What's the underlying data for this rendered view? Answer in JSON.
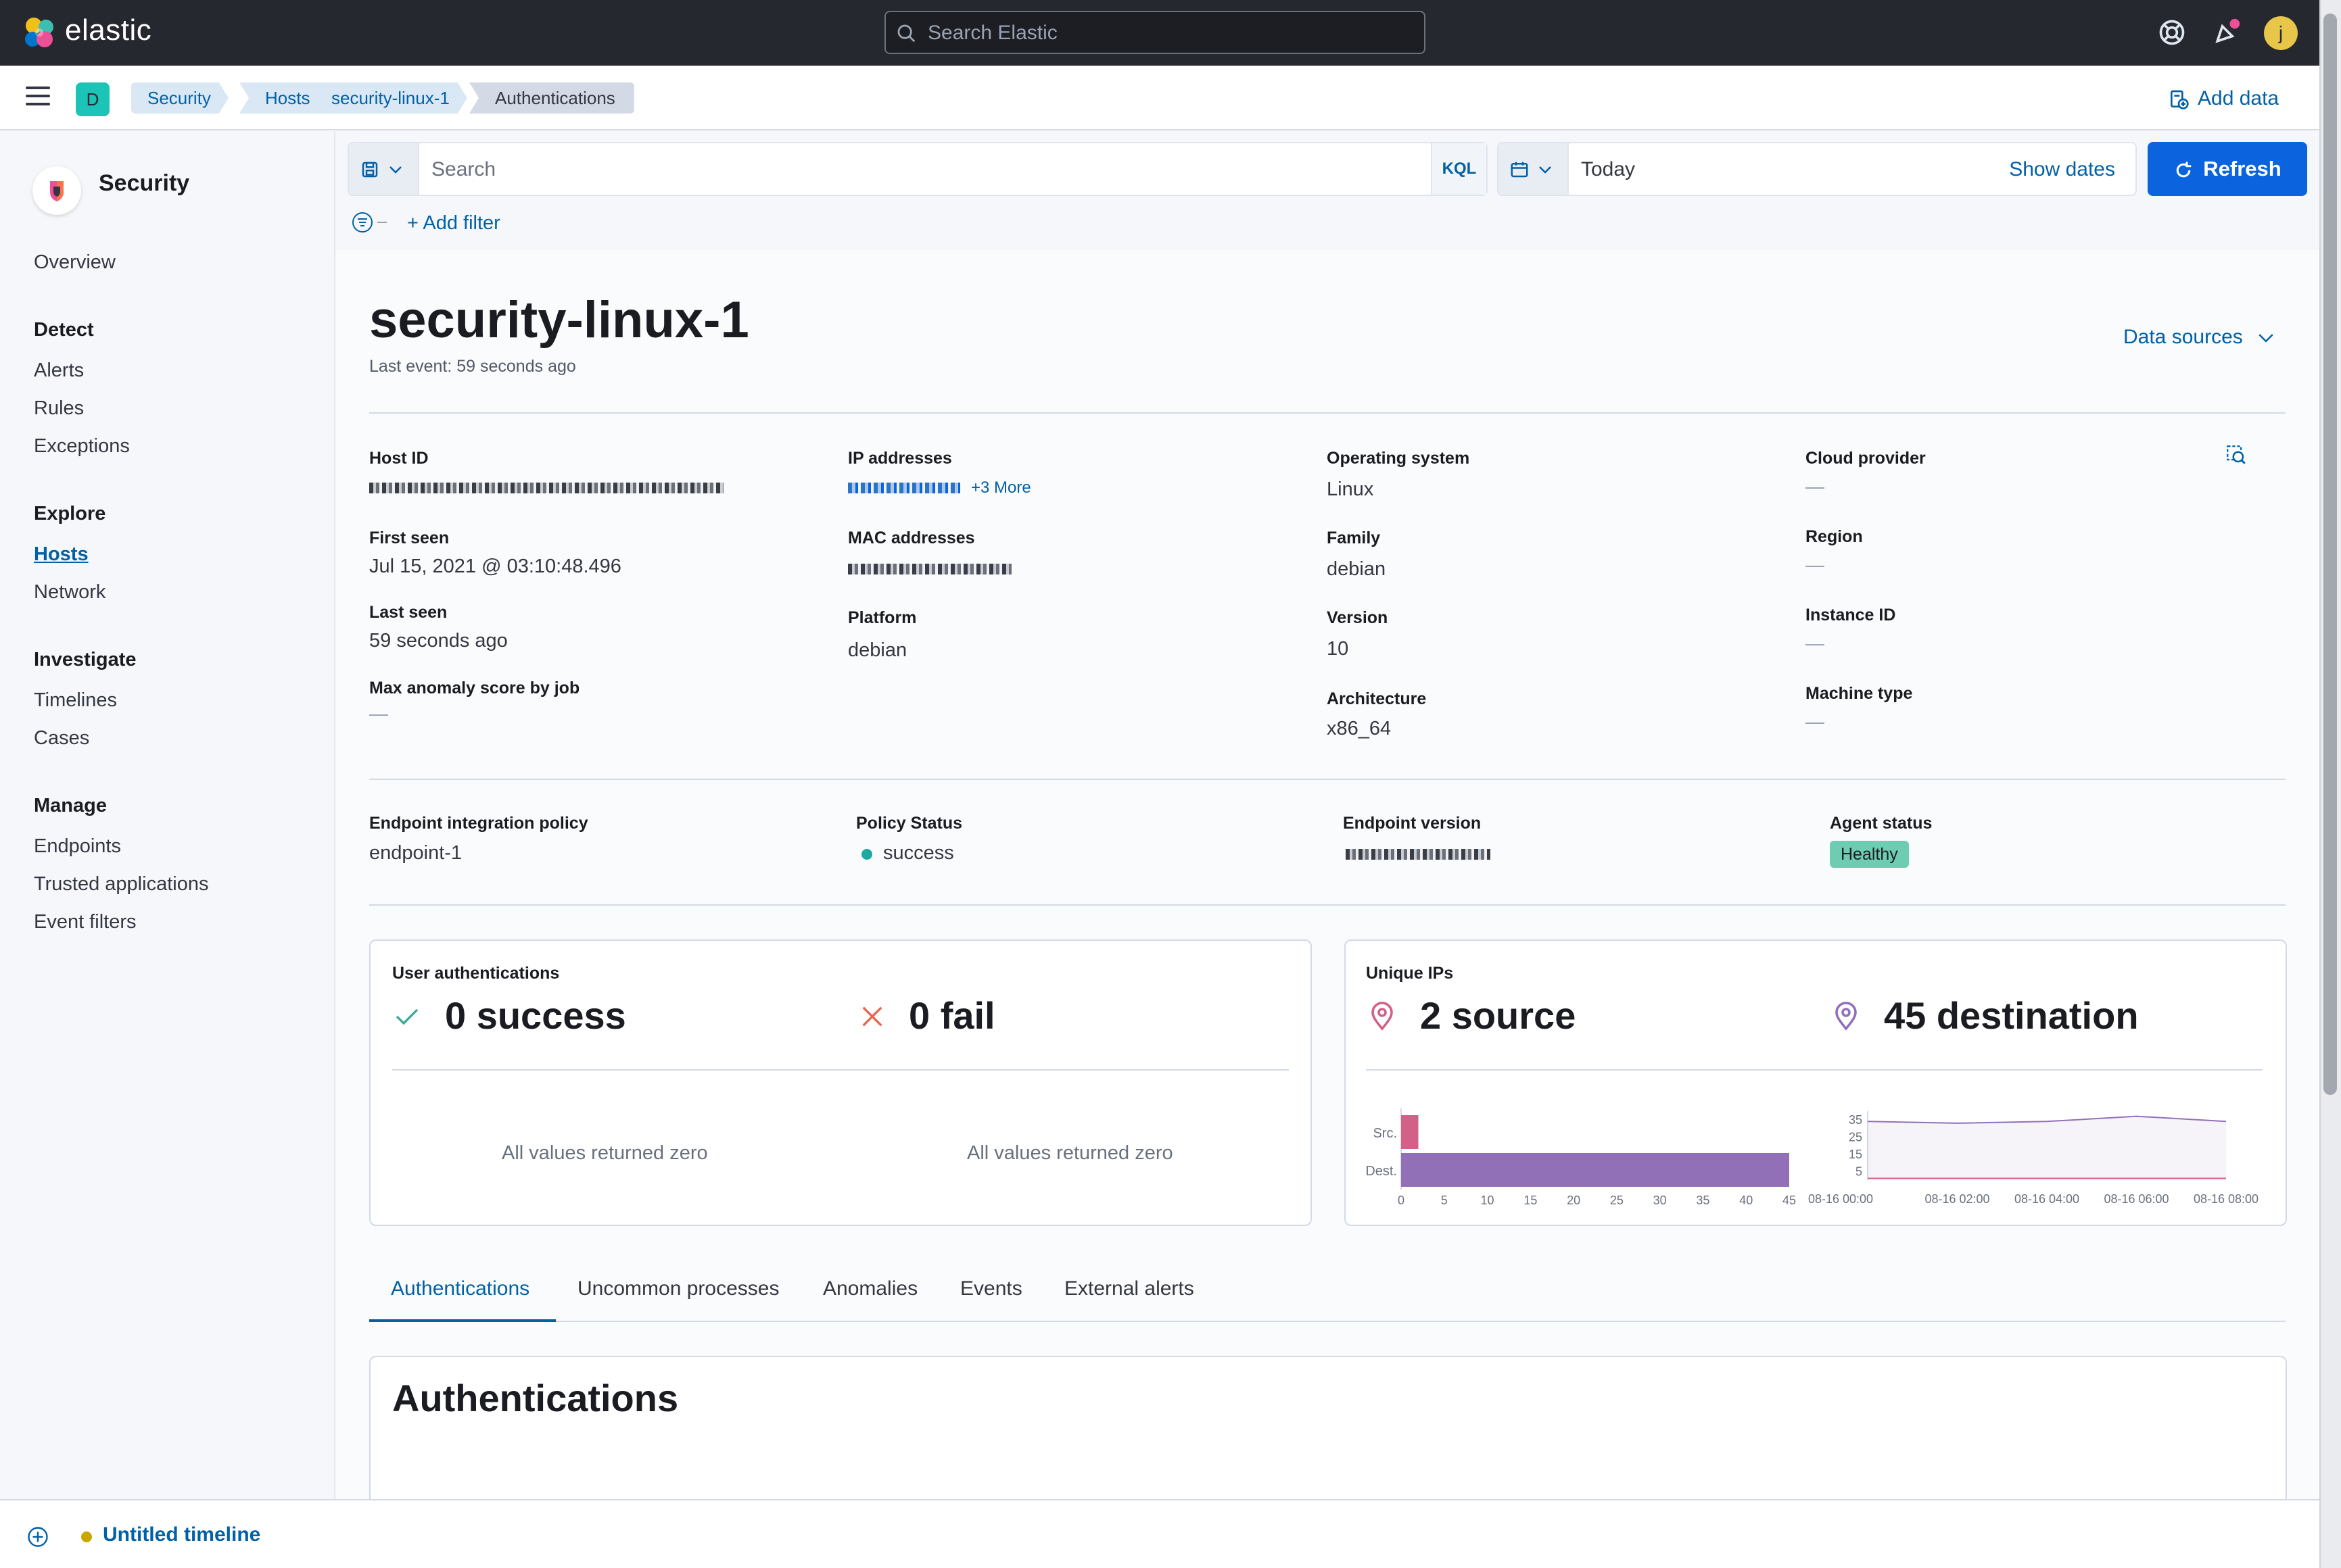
{
  "header": {
    "brand": "elastic",
    "search_placeholder": "Search Elastic",
    "avatar_initial": "j"
  },
  "breadcrumbs": {
    "space_initial": "D",
    "items": [
      "Security",
      "Hosts",
      "security-linux-1",
      "Authentications"
    ],
    "add_data": "Add data"
  },
  "sidebar": {
    "title": "Security",
    "overview": "Overview",
    "sections": [
      {
        "title": "Detect",
        "items": [
          "Alerts",
          "Rules",
          "Exceptions"
        ]
      },
      {
        "title": "Explore",
        "items": [
          "Hosts",
          "Network"
        ],
        "active": "Hosts"
      },
      {
        "title": "Investigate",
        "items": [
          "Timelines",
          "Cases"
        ]
      },
      {
        "title": "Manage",
        "items": [
          "Endpoints",
          "Trusted applications",
          "Event filters"
        ]
      }
    ]
  },
  "query_bar": {
    "placeholder": "Search",
    "language": "KQL",
    "date_value": "Today",
    "show_dates": "Show dates",
    "refresh": "Refresh",
    "add_filter": "+ Add filter"
  },
  "host": {
    "name": "security-linux-1",
    "last_event": "Last event: 59 seconds ago",
    "data_sources": "Data sources",
    "overview": {
      "host_id_label": "Host ID",
      "first_seen_label": "First seen",
      "first_seen": "Jul 15, 2021 @ 03:10:48.496",
      "last_seen_label": "Last seen",
      "last_seen": "59 seconds ago",
      "max_anomaly_label": "Max anomaly score by job",
      "max_anomaly": "—",
      "ip_label": "IP addresses",
      "ip_more": "+3 More",
      "mac_label": "MAC addresses",
      "platform_label": "Platform",
      "platform": "debian",
      "os_label": "Operating system",
      "os": "Linux",
      "family_label": "Family",
      "family": "debian",
      "version_label": "Version",
      "version": "10",
      "arch_label": "Architecture",
      "arch": "x86_64",
      "cloud_label": "Cloud provider",
      "cloud": "—",
      "region_label": "Region",
      "region": "—",
      "instance_label": "Instance ID",
      "instance": "—",
      "machine_label": "Machine type",
      "machine": "—"
    },
    "endpoint": {
      "policy_label": "Endpoint integration policy",
      "policy": "endpoint-1",
      "status_label": "Policy Status",
      "status": "success",
      "version_label": "Endpoint version",
      "agent_label": "Agent status",
      "agent": "Healthy"
    }
  },
  "kpis": {
    "auth": {
      "title": "User authentications",
      "success": "0 success",
      "fail": "0 fail",
      "success_empty": "All values returned zero",
      "fail_empty": "All values returned zero"
    },
    "ips": {
      "title": "Unique IPs",
      "source": "2 source",
      "destination": "45 destination"
    }
  },
  "chart_data": [
    {
      "type": "bar",
      "orientation": "horizontal",
      "categories": [
        "Src.",
        "Dest."
      ],
      "values": [
        2,
        45
      ],
      "colors": [
        "#d36086",
        "#9170b8"
      ],
      "xlim": [
        0,
        45
      ],
      "xticks": [
        0,
        5,
        10,
        15,
        20,
        25,
        30,
        35,
        40,
        45
      ]
    },
    {
      "type": "area",
      "x": [
        "08-16 00:00",
        "08-16 02:00",
        "08-16 04:00",
        "08-16 06:00",
        "08-16 08:00"
      ],
      "x_ticks": [
        "08-16 00:00",
        "08-16 02:00",
        "08-16 04:00",
        "08-16 06:00",
        "08-16 08:00"
      ],
      "series": [
        {
          "values": [
            34,
            33,
            34,
            37,
            34
          ],
          "color": "#9170b8"
        },
        {
          "values": [
            1,
            1,
            1,
            1,
            1
          ],
          "color": "#d36086"
        }
      ],
      "yticks": [
        5,
        15,
        25,
        35
      ],
      "ylim": [
        0,
        40
      ]
    }
  ],
  "tabs": [
    "Authentications",
    "Uncommon processes",
    "Anomalies",
    "Events",
    "External alerts"
  ],
  "active_tab": "Authentications",
  "section_heading": "Authentications",
  "timeline": {
    "name": "Untitled timeline"
  }
}
